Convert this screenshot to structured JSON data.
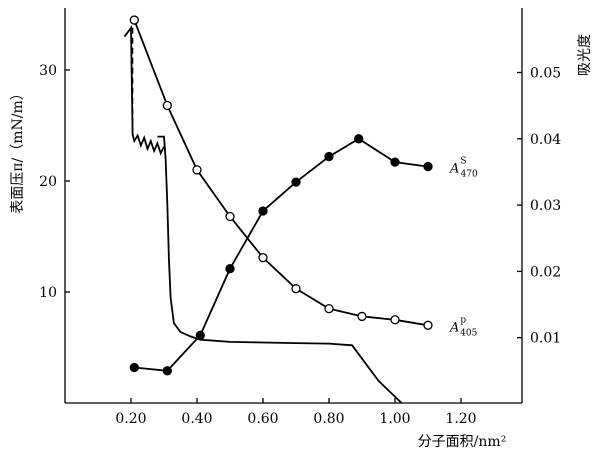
{
  "chart_data": {
    "type": "line",
    "xlabel": "分子面积/nm²",
    "ylabel_left": "表面压π/（mN/m）",
    "ylabel_right": "吸光度",
    "xlim": [
      0.0,
      1.38
    ],
    "ylim_left": [
      0,
      38
    ],
    "ylim_right": [
      0.0,
      0.06
    ],
    "x_ticks": [
      {
        "value": 0.2,
        "label": "0.20"
      },
      {
        "value": 0.4,
        "label": "0.40"
      },
      {
        "value": 0.6,
        "label": "0.60"
      },
      {
        "value": 0.8,
        "label": "0.80"
      },
      {
        "value": 1.0,
        "label": "1.00"
      },
      {
        "value": 1.2,
        "label": "1.20"
      }
    ],
    "y_left_ticks": [
      {
        "value": 10,
        "label": "10"
      },
      {
        "value": 20,
        "label": "20"
      },
      {
        "value": 30,
        "label": "30"
      }
    ],
    "y_right_ticks": [
      {
        "value": 0.01,
        "label": "0.01"
      },
      {
        "value": 0.02,
        "label": "0.02"
      },
      {
        "value": 0.03,
        "label": "0.03"
      },
      {
        "value": 0.04,
        "label": "0.04"
      },
      {
        "value": 0.05,
        "label": "0.05"
      }
    ],
    "series": [
      {
        "label_main": "A",
        "label_sup": "p",
        "label_sub": "405",
        "axis": "left",
        "marker": "open-circle",
        "x": [
          0.21,
          0.31,
          0.4,
          0.5,
          0.6,
          0.7,
          0.8,
          0.9,
          1.0,
          1.1
        ],
        "y": [
          34.5,
          26.8,
          21.0,
          16.8,
          13.1,
          10.3,
          8.5,
          7.8,
          7.5,
          7.0
        ]
      },
      {
        "label_main": "A",
        "label_sup": "S",
        "label_sub": "470",
        "axis": "left",
        "marker": "filled-circle",
        "x": [
          0.21,
          0.31,
          0.41,
          0.5,
          0.6,
          0.7,
          0.8,
          0.89,
          1.0,
          1.1
        ],
        "y": [
          3.2,
          2.9,
          6.1,
          12.1,
          17.3,
          19.9,
          22.2,
          23.8,
          21.7,
          21.3
        ]
      },
      {
        "name": "isotherm",
        "axis": "left",
        "marker": "none",
        "x": [
          0.28,
          0.29,
          0.3,
          0.305,
          0.31,
          0.315,
          0.32,
          0.33,
          0.35,
          0.38,
          0.41,
          0.5,
          0.6,
          0.7,
          0.8,
          0.87,
          0.95,
          1.02
        ],
        "y": [
          24.0,
          24.0,
          24.0,
          22.0,
          18.0,
          13.0,
          9.5,
          7.2,
          6.4,
          6.0,
          5.7,
          5.5,
          5.45,
          5.4,
          5.35,
          5.2,
          2.0,
          0.0
        ]
      },
      {
        "name": "collapse",
        "axis": "left",
        "marker": "none",
        "x": [
          0.18,
          0.19,
          0.2,
          0.205,
          0.21,
          0.22,
          0.23,
          0.24,
          0.25,
          0.26,
          0.27,
          0.28,
          0.29,
          0.3
        ],
        "y": [
          33.0,
          33.4,
          33.8,
          24.2,
          23.6,
          24.1,
          23.2,
          23.9,
          22.9,
          23.6,
          22.7,
          23.4,
          22.5,
          23.1
        ]
      },
      {
        "name": "drop-guide",
        "axis": "left",
        "marker": "none",
        "style": "dashed",
        "x": [
          0.205,
          0.205
        ],
        "y": [
          33.8,
          24.5
        ]
      }
    ]
  }
}
